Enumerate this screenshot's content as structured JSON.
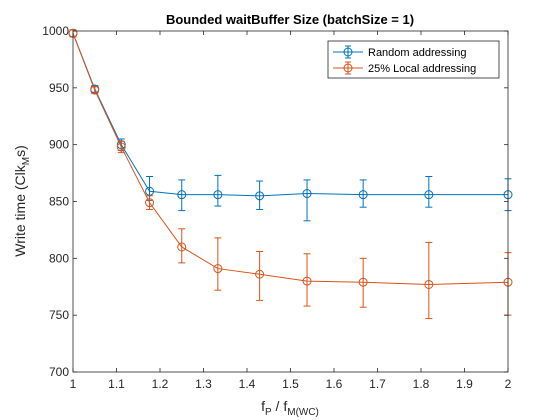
{
  "chart_data": {
    "type": "line",
    "title": "Bounded waitBuffer Size (batchSize = 1)",
    "xlabel": {
      "main": "f",
      "sub1": "P",
      "sep": " / f",
      "sub2": "M(WC)"
    },
    "ylabel": {
      "main": "Write time (Clk",
      "sub": "M",
      "end": "s)"
    },
    "xlim": [
      1,
      2
    ],
    "ylim": [
      700,
      1000
    ],
    "xticks": [
      1,
      1.1,
      1.2,
      1.3,
      1.4,
      1.5,
      1.6,
      1.7,
      1.8,
      1.9,
      2
    ],
    "yticks": [
      700,
      750,
      800,
      850,
      900,
      950,
      1000
    ],
    "xtick_labels": [
      "1",
      "1.1",
      "1.2",
      "1.3",
      "1.4",
      "1.5",
      "1.6",
      "1.7",
      "1.8",
      "1.9",
      "2"
    ],
    "ytick_labels": [
      "700",
      "750",
      "800",
      "850",
      "900",
      "950",
      "1000"
    ],
    "grid": false,
    "legend_position": "top-right",
    "x": [
      1.0,
      1.05,
      1.111,
      1.176,
      1.25,
      1.333,
      1.429,
      1.538,
      1.667,
      1.818,
      2.0
    ],
    "series": [
      {
        "name": "Random addressing",
        "color": "#0072BD",
        "marker": "circle",
        "values": [
          998,
          949,
          900,
          859,
          856,
          856,
          855,
          857,
          856,
          856,
          856
        ],
        "err_low": [
          3,
          3,
          5,
          8,
          14,
          10,
          12,
          24,
          11,
          11,
          14
        ],
        "err_high": [
          3,
          3,
          5,
          13,
          13,
          17,
          13,
          12,
          13,
          16,
          14
        ]
      },
      {
        "name": "25% Local addressing",
        "color": "#D95319",
        "marker": "circle",
        "values": [
          998,
          948,
          898,
          849,
          810,
          791,
          786,
          780,
          779,
          777,
          779
        ],
        "err_low": [
          3,
          3,
          5,
          6,
          14,
          19,
          23,
          22,
          22,
          30,
          29
        ],
        "err_high": [
          3,
          3,
          5,
          6,
          16,
          27,
          20,
          24,
          21,
          37,
          26
        ]
      }
    ]
  }
}
